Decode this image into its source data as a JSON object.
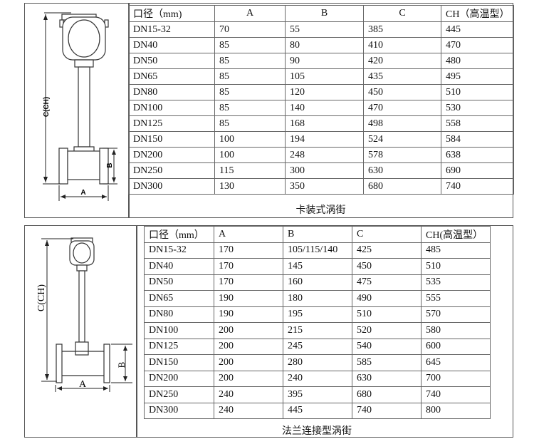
{
  "clamp": {
    "caption": "卡装式涡街",
    "drawing_labels": {
      "height": "C(CH)",
      "width": "A",
      "flange": "B"
    },
    "headers": [
      "口径（mm)",
      "A",
      "B",
      "C",
      "CH（高温型）"
    ],
    "rows": [
      [
        "DN15-32",
        "70",
        "55",
        "385",
        "445"
      ],
      [
        "DN40",
        "85",
        "80",
        "410",
        "470"
      ],
      [
        "DN50",
        "85",
        "90",
        "420",
        "480"
      ],
      [
        "DN65",
        "85",
        "105",
        "435",
        "495"
      ],
      [
        "DN80",
        "85",
        "120",
        "450",
        "510"
      ],
      [
        "DN100",
        "85",
        "140",
        "470",
        "530"
      ],
      [
        "DN125",
        "85",
        "168",
        "498",
        "558"
      ],
      [
        "DN150",
        "100",
        "194",
        "524",
        "584"
      ],
      [
        "DN200",
        "100",
        "248",
        "578",
        "638"
      ],
      [
        "DN250",
        "115",
        "300",
        "630",
        "690"
      ],
      [
        "DN300",
        "130",
        "350",
        "680",
        "740"
      ]
    ]
  },
  "flange": {
    "caption": "法兰连接型涡街",
    "drawing_labels": {
      "height": "C(CH)",
      "width": "A",
      "flange": "B"
    },
    "headers": [
      "口径（mm）",
      "A",
      "B",
      "C",
      "CH(高温型）"
    ],
    "rows": [
      [
        "DN15-32",
        "170",
        "105/115/140",
        "425",
        "485"
      ],
      [
        "DN40",
        "170",
        "145",
        "450",
        "510"
      ],
      [
        "DN50",
        "170",
        "160",
        "475",
        "535"
      ],
      [
        "DN65",
        "190",
        "180",
        "490",
        "555"
      ],
      [
        "DN80",
        "190",
        "195",
        "510",
        "570"
      ],
      [
        "DN100",
        "200",
        "215",
        "520",
        "580"
      ],
      [
        "DN125",
        "200",
        "245",
        "540",
        "600"
      ],
      [
        "DN150",
        "200",
        "280",
        "585",
        "645"
      ],
      [
        "DN200",
        "200",
        "240",
        "630",
        "700"
      ],
      [
        "DN250",
        "240",
        "395",
        "680",
        "740"
      ],
      [
        "DN300",
        "240",
        "445",
        "740",
        "800"
      ]
    ]
  }
}
